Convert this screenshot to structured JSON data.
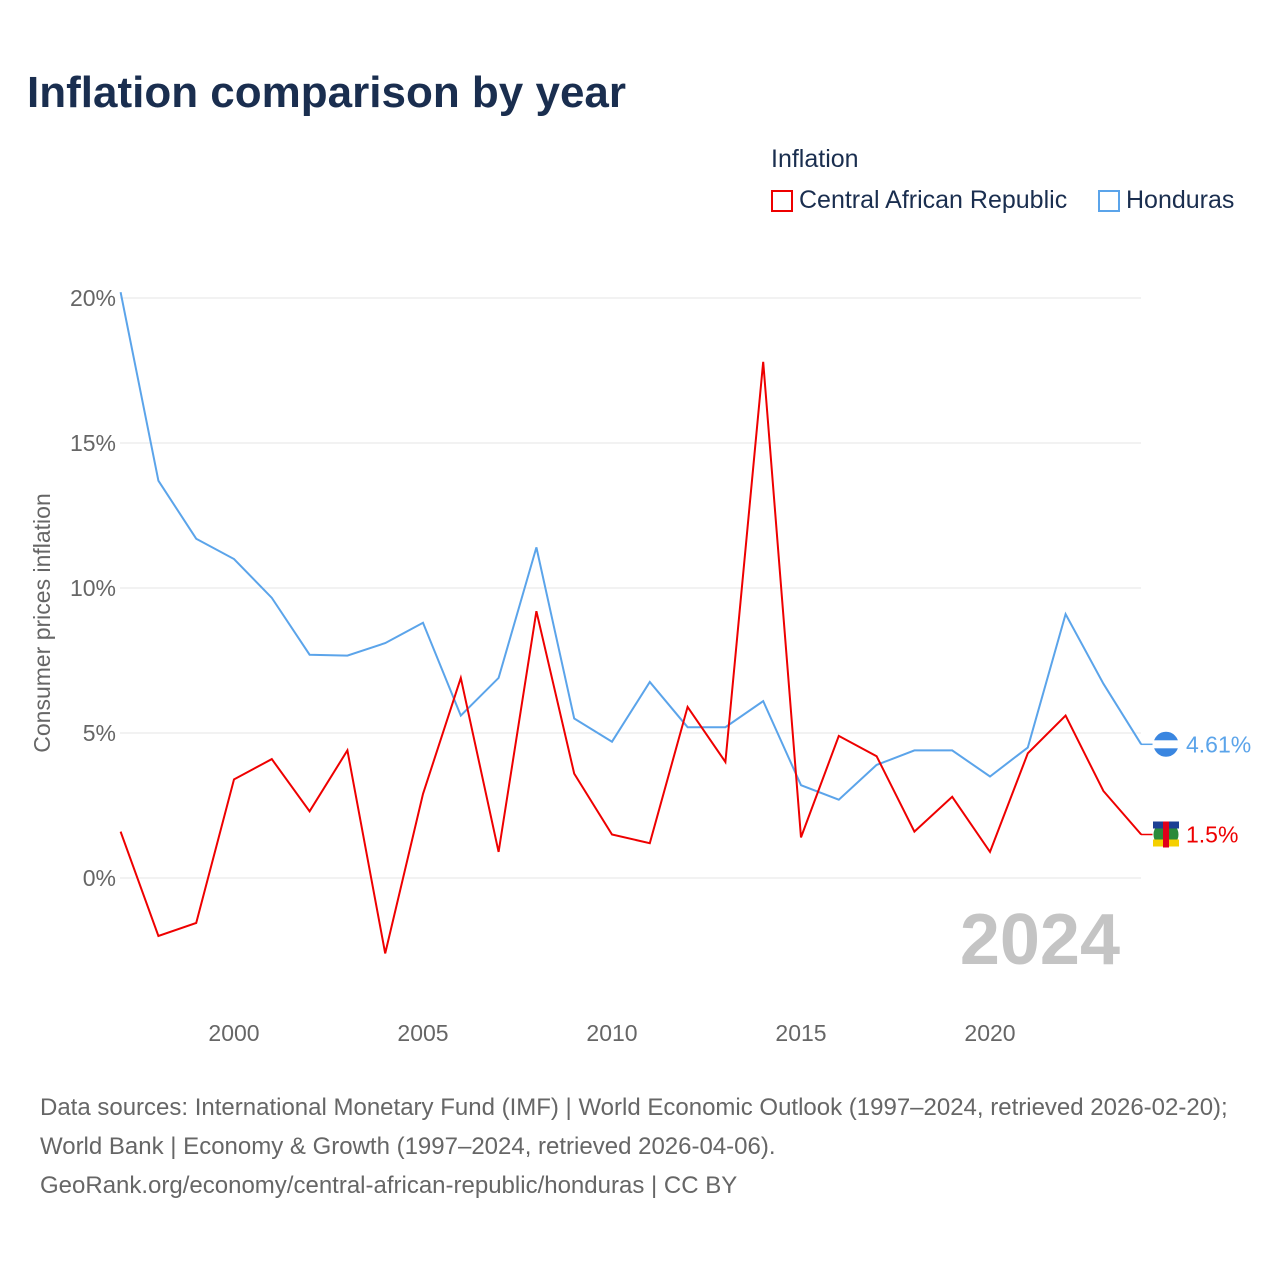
{
  "title": "Inflation comparison by year",
  "legend": {
    "title": "Inflation",
    "items": [
      {
        "label": "Central African Republic",
        "color": "#ee0000"
      },
      {
        "label": "Honduras",
        "color": "#5ba4ea"
      }
    ]
  },
  "chart_data": {
    "type": "line",
    "title": "Inflation comparison by year",
    "ylabel": "Consumer prices inflation",
    "xlabel": "",
    "ylim": [
      -4,
      21
    ],
    "xlim": [
      1997,
      2024
    ],
    "yticks": [
      0,
      5,
      10,
      15,
      20
    ],
    "ytick_labels": [
      "0%",
      "5%",
      "10%",
      "15%",
      "20%"
    ],
    "xticks": [
      2000,
      2005,
      2010,
      2015,
      2020
    ],
    "xtick_labels": [
      "2000",
      "2005",
      "2010",
      "2015",
      "2020"
    ],
    "grid": true,
    "year_label": "2024",
    "x": [
      1997,
      1998,
      1999,
      2000,
      2001,
      2002,
      2003,
      2004,
      2005,
      2006,
      2007,
      2008,
      2009,
      2010,
      2011,
      2012,
      2013,
      2014,
      2015,
      2016,
      2017,
      2018,
      2019,
      2020,
      2021,
      2022,
      2023,
      2024
    ],
    "series": [
      {
        "name": "Central African Republic",
        "color": "#ee0000",
        "end_label": "1.5%",
        "values": [
          1.6,
          -2.0,
          -1.55,
          3.4,
          4.1,
          2.3,
          4.4,
          -2.6,
          2.9,
          6.9,
          0.9,
          9.2,
          3.6,
          1.5,
          1.2,
          5.9,
          4.0,
          17.8,
          1.4,
          4.9,
          4.2,
          1.6,
          2.8,
          0.9,
          4.3,
          5.6,
          3.0,
          1.5
        ]
      },
      {
        "name": "Honduras",
        "color": "#5ba4ea",
        "end_label": "4.61%",
        "values": [
          20.2,
          13.7,
          11.7,
          11.0,
          9.66,
          7.7,
          7.67,
          8.1,
          8.8,
          5.6,
          6.9,
          11.4,
          5.5,
          4.7,
          6.76,
          5.2,
          5.2,
          6.1,
          3.2,
          2.7,
          3.9,
          4.4,
          4.4,
          3.5,
          4.5,
          9.1,
          6.7,
          4.61
        ]
      }
    ]
  },
  "source": {
    "line1": "Data sources: International Monetary Fund (IMF) | World Economic Outlook (1997–2024, retrieved 2026-02-20); World Bank | Economy & Growth (1997–2024, retrieved 2026-04-06).",
    "line2": "GeoRank.org/economy/central-african-republic/honduras | CC BY"
  }
}
